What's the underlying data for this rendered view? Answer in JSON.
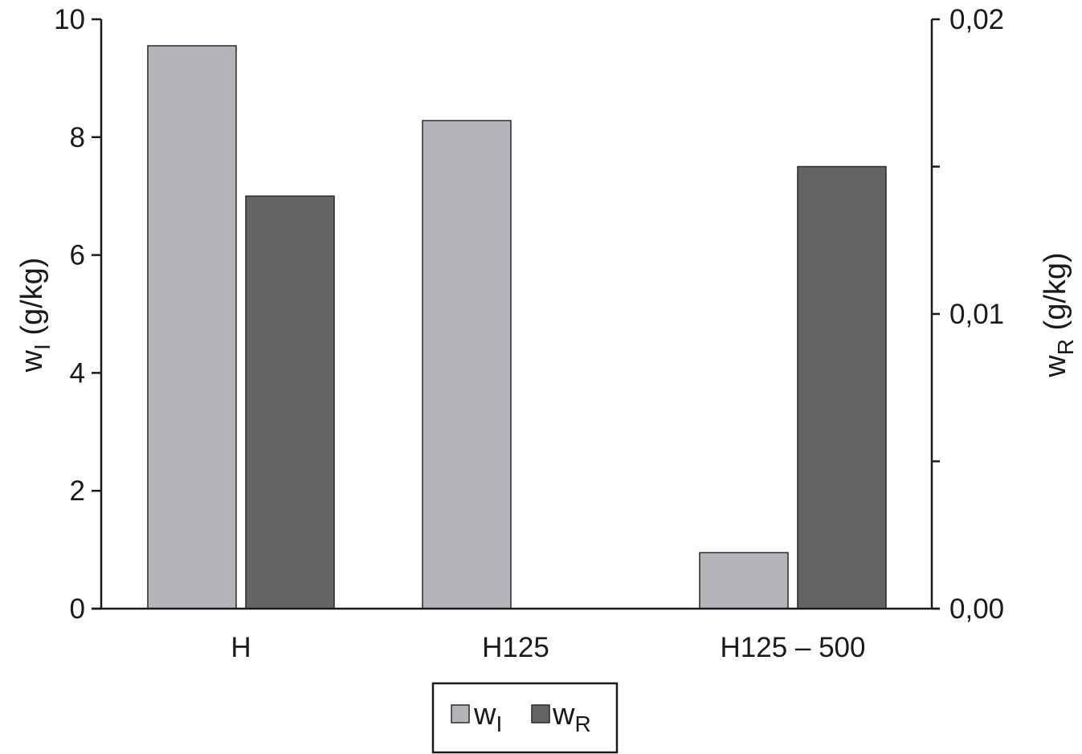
{
  "chart_data": {
    "type": "bar",
    "categories": [
      "H",
      "H125",
      "H125 – 500"
    ],
    "series": [
      {
        "name": "w_I",
        "label_main": "w",
        "label_sub": "I",
        "axis": "left",
        "color": "#b4b5b8",
        "values": [
          9.55,
          8.28,
          0.95
        ]
      },
      {
        "name": "w_R",
        "label_main": "w",
        "label_sub": "R",
        "axis": "right",
        "color": "#636466",
        "values": [
          0.014,
          0.0,
          0.015
        ]
      }
    ],
    "y_left": {
      "label_main": "w",
      "label_sub": "I",
      "label_suffix": " (g/kg)",
      "ylim": [
        0,
        10
      ],
      "ticks": [
        0,
        2,
        4,
        6,
        8,
        10
      ],
      "tick_labels": [
        "0",
        "2",
        "4",
        "6",
        "8",
        "10"
      ]
    },
    "y_right": {
      "label_main": "w",
      "label_sub": "R",
      "label_suffix": " (g/kg)",
      "ylim": [
        0,
        0.02
      ],
      "ticks": [
        0,
        0.005,
        0.01,
        0.015,
        0.02
      ],
      "tick_labels": [
        "0,00",
        "",
        "0,01",
        "",
        "0,02"
      ]
    },
    "grid": false,
    "legend_position": "bottom-center"
  }
}
